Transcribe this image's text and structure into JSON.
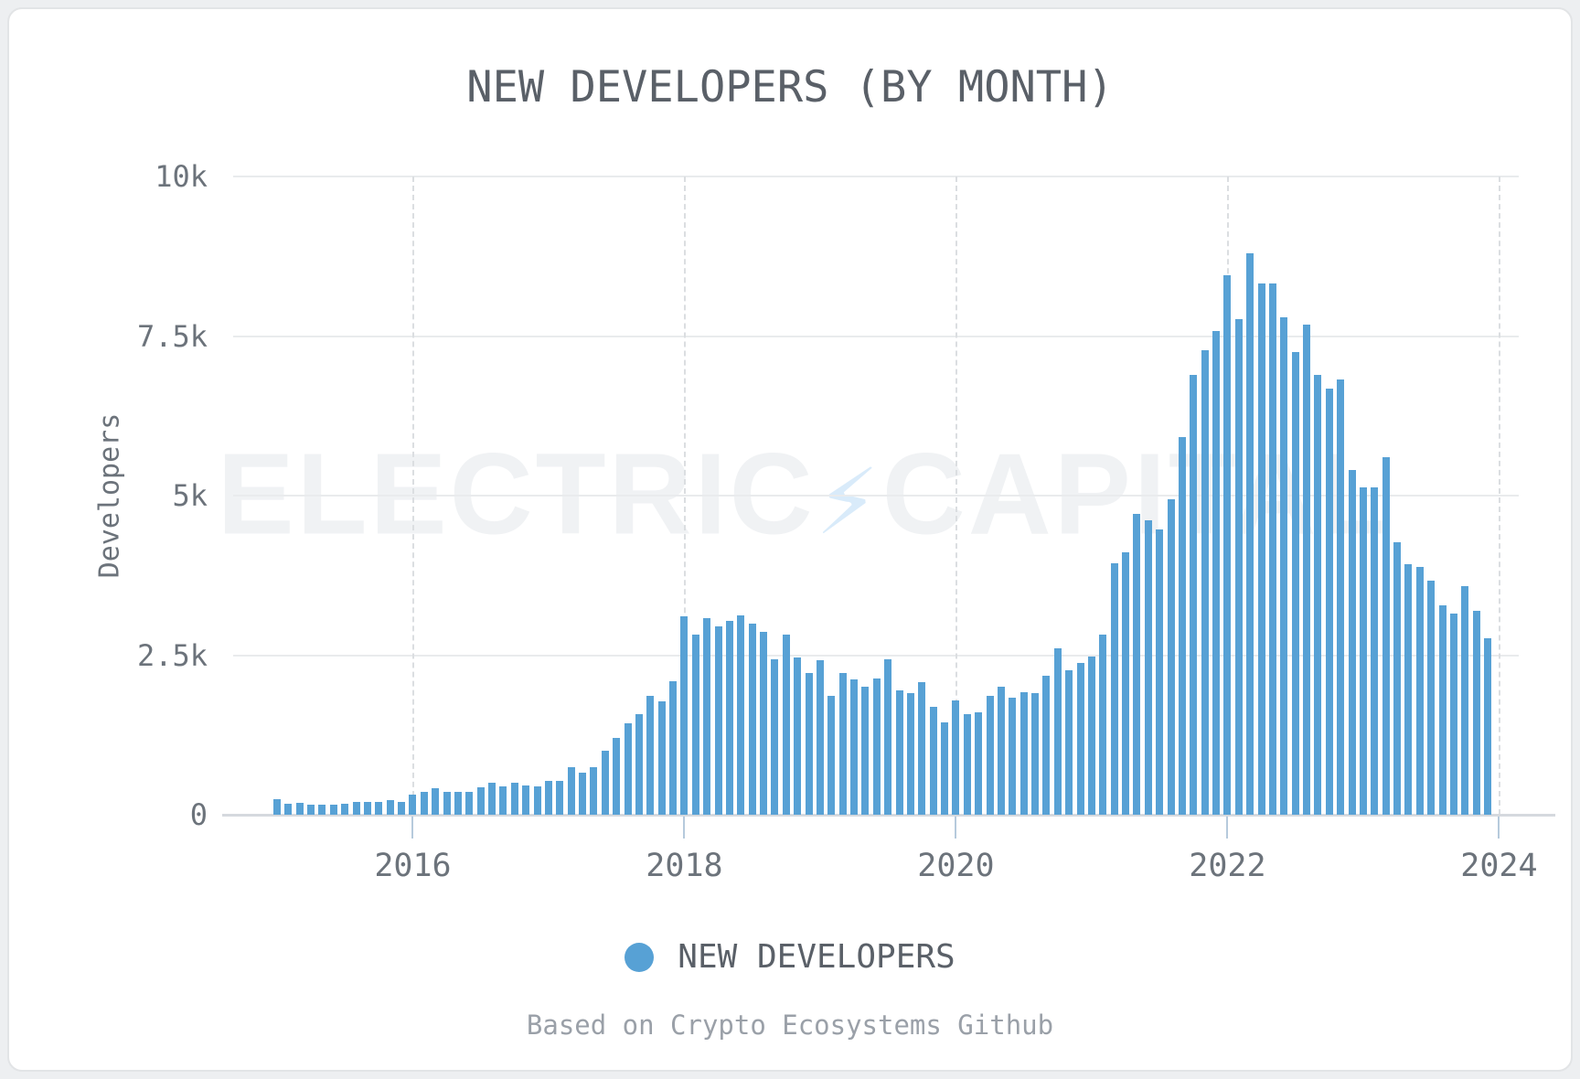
{
  "header": {
    "title": "NEW DEVELOPERS (BY MONTH)"
  },
  "legend": {
    "label": "NEW DEVELOPERS",
    "marker_color": "#57a1d5"
  },
  "footer": {
    "note": "Based on Crypto Ecosystems Github"
  },
  "watermark": {
    "left": "ELECTRIC",
    "bolt": "⚡",
    "right": "CAPITAL"
  },
  "chart_data": {
    "type": "bar",
    "title": "NEW DEVELOPERS (BY MONTH)",
    "xlabel": "",
    "ylabel": "Developers",
    "ylim": [
      0,
      10000
    ],
    "grid": true,
    "legend_position": "bottom",
    "bar_color": "#57a1d5",
    "x_unit": "month",
    "x_start": "2015-01",
    "x_end": "2023-12",
    "y_ticks": [
      {
        "label": "0",
        "value": 0
      },
      {
        "label": "2.5k",
        "value": 2500
      },
      {
        "label": "5k",
        "value": 5000
      },
      {
        "label": "7.5k",
        "value": 7500
      },
      {
        "label": "10k",
        "value": 10000
      }
    ],
    "x_ticks": [
      {
        "label": "2016",
        "month_index": 12
      },
      {
        "label": "2018",
        "month_index": 36
      },
      {
        "label": "2020",
        "month_index": 60
      },
      {
        "label": "2022",
        "month_index": 84
      },
      {
        "label": "2024",
        "month_index": 108
      }
    ],
    "series": [
      {
        "name": "NEW DEVELOPERS",
        "values": [
          240,
          175,
          180,
          155,
          155,
          155,
          170,
          200,
          200,
          200,
          230,
          200,
          310,
          360,
          415,
          360,
          360,
          355,
          430,
          495,
          445,
          495,
          460,
          440,
          530,
          525,
          740,
          655,
          740,
          1000,
          1210,
          1440,
          1570,
          1860,
          1780,
          2090,
          3115,
          2820,
          3080,
          2950,
          3035,
          3125,
          2990,
          2860,
          2430,
          2820,
          2470,
          2220,
          2420,
          1865,
          2215,
          2125,
          2000,
          2135,
          2430,
          1950,
          1910,
          2080,
          1695,
          1445,
          1790,
          1570,
          1610,
          1865,
          2000,
          1830,
          1925,
          1910,
          2175,
          2605,
          2260,
          2380,
          2475,
          2820,
          3940,
          4110,
          4715,
          4620,
          4470,
          4950,
          5910,
          6895,
          7285,
          7580,
          8455,
          7765,
          8790,
          8325,
          8325,
          7800,
          7255,
          7680,
          6895,
          6680,
          6815,
          5400,
          5135,
          5135,
          5605,
          4275,
          3920,
          3885,
          3665,
          3280,
          3155,
          3585,
          3200,
          2770
        ]
      }
    ]
  }
}
